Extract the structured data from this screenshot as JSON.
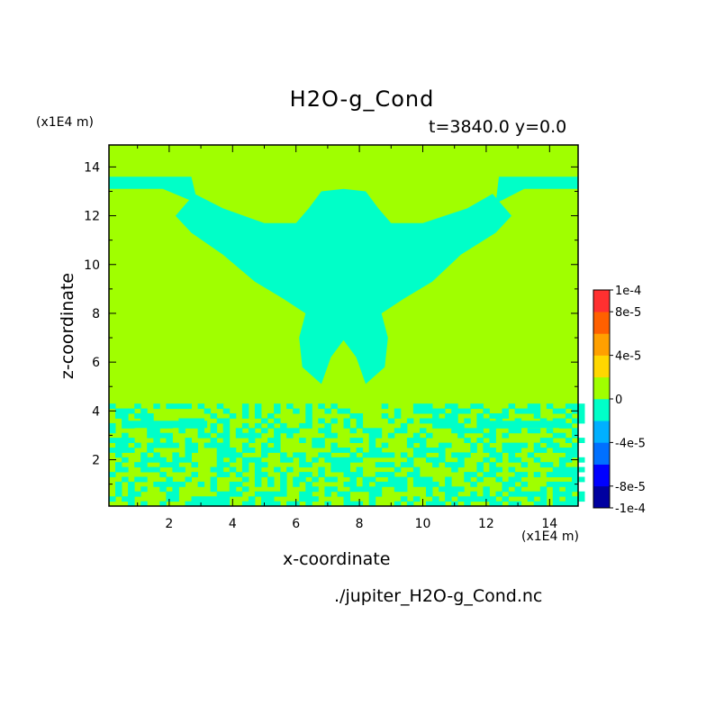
{
  "chart_data": {
    "type": "heatmap",
    "title": "H2O-g_Cond",
    "time_label": "t=3840.0 y=0.0",
    "xlabel": "x-coordinate",
    "ylabel": "z-coordinate",
    "x_unit": "(x1E4 m)",
    "y_unit": "(x1E4 m)",
    "xlim": [
      0.1,
      14.9
    ],
    "ylim": [
      0.1,
      14.9
    ],
    "x_ticks": [
      "2",
      "4",
      "6",
      "8",
      "10",
      "12",
      "14"
    ],
    "y_ticks": [
      "2",
      "4",
      "6",
      "8",
      "10",
      "12",
      "14"
    ],
    "colorbar": {
      "levels": [
        {
          "color": "#0000a0"
        },
        {
          "color": "#0000ff"
        },
        {
          "color": "#0070ff"
        },
        {
          "color": "#00b0ff"
        },
        {
          "color": "#00ffc8"
        },
        {
          "color": "#a0ff00"
        },
        {
          "color": "#ffd700"
        },
        {
          "color": "#ffa000"
        },
        {
          "color": "#ff6000"
        },
        {
          "color": "#ff3030"
        }
      ],
      "tick_labels": [
        {
          "label": "1e-4",
          "value": 0.0001
        },
        {
          "label": "8e-5",
          "value": 8e-05
        },
        {
          "label": "4e-5",
          "value": 4e-05
        },
        {
          "label": "0",
          "value": 0
        },
        {
          "label": "-4e-5",
          "value": -4e-05
        },
        {
          "label": "-8e-5",
          "value": -8e-05
        },
        {
          "label": "-1e-4",
          "value": -0.0001
        }
      ],
      "range": [
        -0.0001,
        0.0001
      ]
    },
    "background_color": "#a0ff00",
    "region_color": "#00ffc8",
    "negative_region_outline": [
      [
        7.5,
        13.1
      ],
      [
        8.2,
        13.0
      ],
      [
        8.6,
        12.3
      ],
      [
        9.0,
        11.7
      ],
      [
        10.0,
        11.7
      ],
      [
        11.4,
        12.3
      ],
      [
        12.2,
        12.9
      ],
      [
        12.8,
        12.0
      ],
      [
        12.3,
        11.3
      ],
      [
        11.2,
        10.4
      ],
      [
        10.3,
        9.3
      ],
      [
        9.4,
        8.6
      ],
      [
        8.7,
        8.0
      ],
      [
        8.9,
        7.0
      ],
      [
        8.8,
        5.8
      ],
      [
        8.2,
        5.1
      ],
      [
        7.9,
        6.2
      ],
      [
        7.5,
        6.9
      ],
      [
        7.1,
        6.2
      ],
      [
        6.8,
        5.1
      ],
      [
        6.2,
        5.8
      ],
      [
        6.1,
        7.0
      ],
      [
        6.3,
        8.0
      ],
      [
        5.6,
        8.6
      ],
      [
        4.7,
        9.3
      ],
      [
        3.7,
        10.4
      ],
      [
        2.7,
        11.3
      ],
      [
        2.2,
        12.0
      ],
      [
        2.8,
        12.9
      ],
      [
        3.7,
        12.3
      ],
      [
        5.0,
        11.7
      ],
      [
        6.0,
        11.7
      ],
      [
        6.4,
        12.3
      ],
      [
        6.8,
        13.0
      ]
    ],
    "negative_band_top": [
      [
        0.1,
        13.1
      ],
      [
        1.8,
        13.1
      ],
      [
        2.9,
        12.5
      ],
      [
        2.7,
        13.6
      ],
      [
        0.1,
        13.6
      ]
    ],
    "negative_band_top_right": [
      [
        14.9,
        13.1
      ],
      [
        13.2,
        13.1
      ],
      [
        12.3,
        12.5
      ],
      [
        12.4,
        13.6
      ],
      [
        14.9,
        13.6
      ]
    ],
    "negative_lower_band": [
      [
        0.6,
        3.6
      ],
      [
        3.2,
        3.6
      ],
      [
        3.2,
        3.3
      ],
      [
        0.6,
        3.3
      ]
    ],
    "negative_lower_band_right": [
      [
        11.8,
        3.6
      ],
      [
        14.5,
        3.6
      ],
      [
        14.5,
        3.3
      ],
      [
        11.8,
        3.3
      ]
    ],
    "noise_zone_top": 4.3
  },
  "source_file": "./jupiter_H2O-g_Cond.nc"
}
